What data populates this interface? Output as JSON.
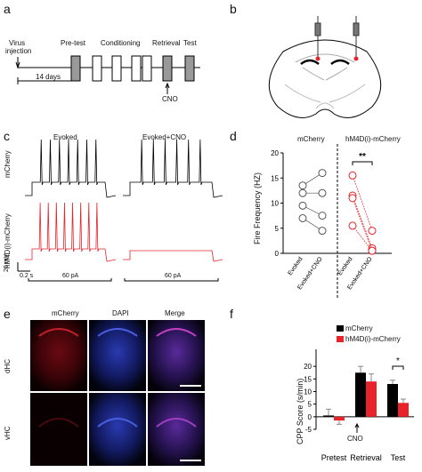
{
  "panels": {
    "a": {
      "letter": "a",
      "virus_label_line1": "Virus",
      "virus_label_line2": "injection",
      "pretest": "Pre-test",
      "conditioning": "Conditioning",
      "retrieval": "Retrieval",
      "test": "Test",
      "days": "14 days",
      "cno": "CNO"
    },
    "b": {
      "letter": "b"
    },
    "c": {
      "letter": "c",
      "evoked": "Evoked",
      "evoked_cno": "Evoked+CNO",
      "row1": "mCherry",
      "row2": "hM4D(i)-mCherry",
      "scale_mv": "20 mV",
      "scale_s": "0.2 s",
      "current1": "60 pA",
      "current2": "60 pA"
    },
    "d": {
      "letter": "d",
      "group1": "mCherry",
      "group2": "hM4D(i)-mCherry",
      "ylabel": "Fire Frequency (HZ)",
      "sig": "**",
      "xticks": [
        "Evoked",
        "Evoked+CNO",
        "Evoked",
        "Evoked+CNO"
      ]
    },
    "e": {
      "letter": "e",
      "col1": "mCherry",
      "col2": "DAPI",
      "col3": "Merge",
      "row1": "dHC",
      "row2": "vHC"
    },
    "f": {
      "letter": "f",
      "legend1": "mCherry",
      "legend2": "hM4D(i)-mCherry",
      "ylabel": "CPP Score (s/min)",
      "sig": "*",
      "cno": "CNO"
    }
  },
  "colors": {
    "mcherry": "#000000",
    "hm4di": "#e8232a",
    "dapi": "#1a2a9a"
  },
  "chart_data": [
    {
      "type": "scatter",
      "panel": "d",
      "ylabel": "Fire Frequency (HZ)",
      "ylim": [
        0,
        20
      ],
      "yticks": [
        0,
        5,
        10,
        15,
        20
      ],
      "groups": [
        {
          "name": "mCherry",
          "color": "#555555",
          "pairs": [
            [
              13.5,
              16
            ],
            [
              12,
              12
            ],
            [
              9.5,
              7.5
            ],
            [
              7,
              4.5
            ]
          ]
        },
        {
          "name": "hM4D(i)-mCherry",
          "color": "#e8232a",
          "pairs": [
            [
              15.5,
              4.5
            ],
            [
              11.5,
              1
            ],
            [
              11,
              0.5
            ],
            [
              5.5,
              0.5
            ]
          ]
        }
      ],
      "categories": [
        "Evoked",
        "Evoked+CNO",
        "Evoked",
        "Evoked+CNO"
      ]
    },
    {
      "type": "bar",
      "panel": "f",
      "ylabel": "CPP Score (s/min)",
      "ylim": [
        -5,
        25
      ],
      "yticks": [
        -5,
        0,
        5,
        10,
        15,
        20
      ],
      "categories": [
        "Pretest",
        "Retrieval",
        "Test"
      ],
      "series": [
        {
          "name": "mCherry",
          "color": "#000000",
          "values": [
            0.5,
            17.5,
            13
          ],
          "errors": [
            2.5,
            2.5,
            1.5
          ]
        },
        {
          "name": "hM4D(i)-mCherry",
          "color": "#e8232a",
          "values": [
            -1.5,
            14,
            5.5
          ],
          "errors": [
            1.5,
            3,
            1.5
          ]
        }
      ]
    }
  ]
}
